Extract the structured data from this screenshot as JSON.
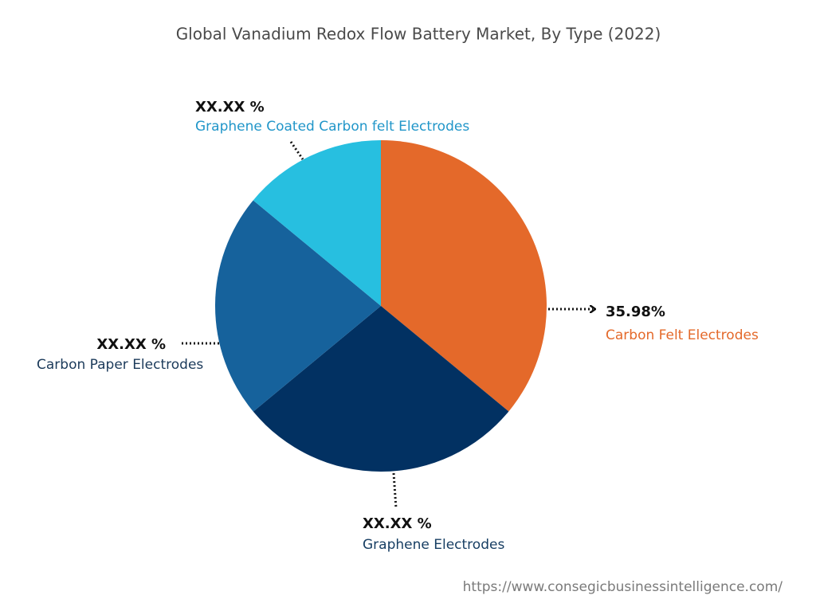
{
  "chart_data": {
    "type": "pie",
    "title": "Global Vanadium Redox Flow Battery Market, By Type (2022)",
    "categories": [
      "Carbon Felt Electrodes",
      "Graphene Electrodes",
      "Carbon Paper Electrodes",
      "Graphene Coated Carbon felt Electrodes"
    ],
    "values": [
      35.98,
      28,
      22,
      14
    ],
    "value_labels": [
      "35.98%",
      "XX.XX %",
      "XX.XX %",
      "XX.XX %"
    ],
    "colors": [
      "#e4692a",
      "#023162",
      "#16629c",
      "#27bfe0"
    ],
    "label_colors": [
      "#e4692a",
      "#173e63",
      "#1b3a5a",
      "#2196c9"
    ],
    "source": "https://www.consegicbusinessintelligence.com/"
  }
}
